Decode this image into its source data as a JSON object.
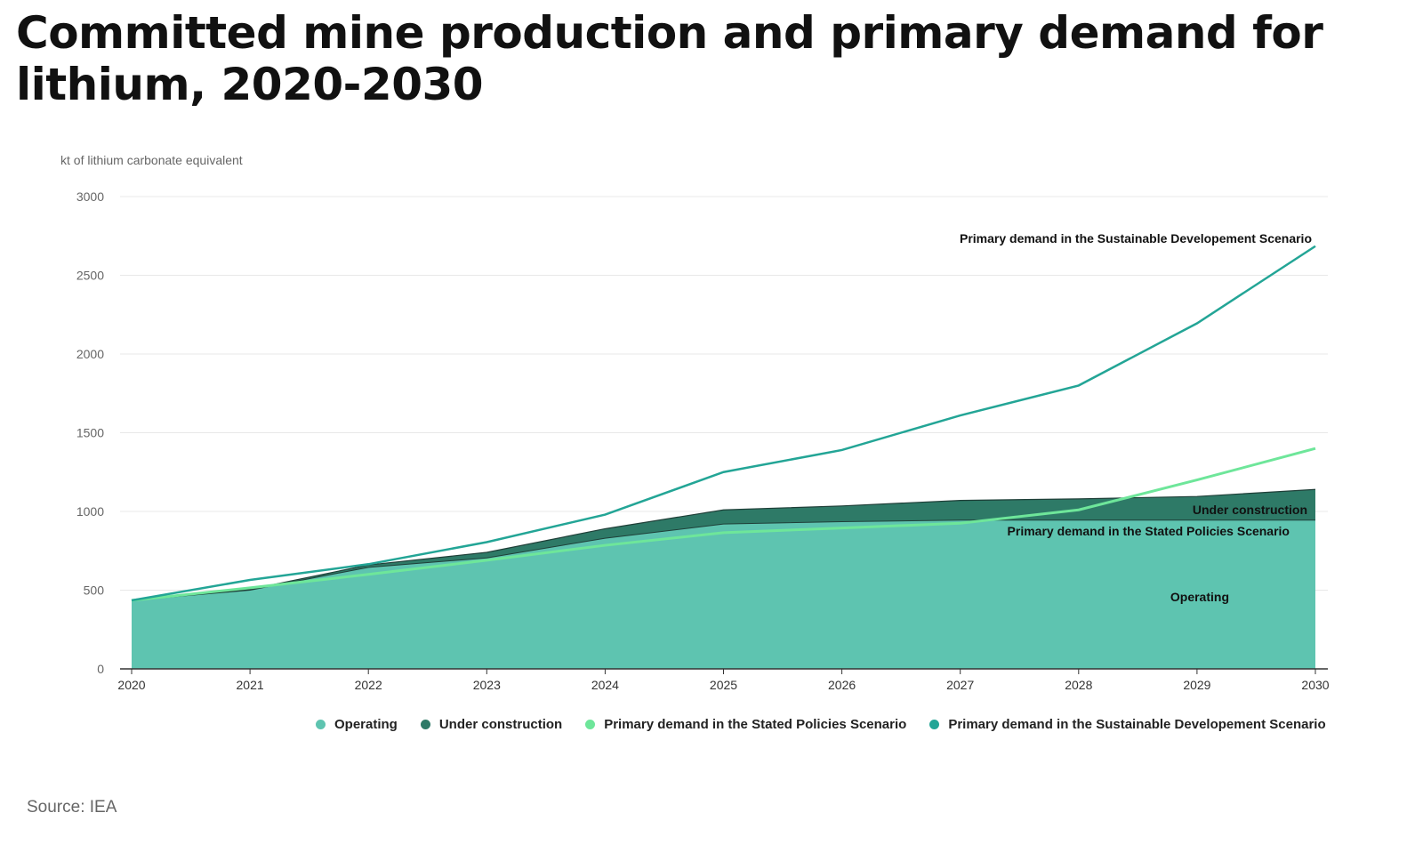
{
  "title": "Committed mine production and primary demand for lithium, 2020-2030",
  "source": "Source: IEA",
  "chart_data": {
    "type": "area",
    "ylabel": "kt of lithium carbonate equivalent",
    "ylim": [
      0,
      3000
    ],
    "yticks": [
      0,
      500,
      1000,
      1500,
      2000,
      2500,
      3000
    ],
    "x": [
      "2020",
      "2021",
      "2022",
      "2023",
      "2024",
      "2025",
      "2026",
      "2027",
      "2028",
      "2029",
      "2030"
    ],
    "grid": true,
    "legend_position": "bottom",
    "series": [
      {
        "name": "Operating",
        "kind": "stacked-area",
        "color": "#5ec4b0",
        "values": [
          435,
          500,
          645,
          705,
          830,
          920,
          935,
          945,
          945,
          945,
          945
        ]
      },
      {
        "name": "Under construction",
        "kind": "stacked-area",
        "color": "#2e7a67",
        "values": [
          0,
          5,
          15,
          35,
          60,
          90,
          100,
          125,
          135,
          150,
          195
        ]
      },
      {
        "name": "Primary demand in the Stated Policies Scenario",
        "kind": "line",
        "color": "#6ee69a",
        "values": [
          435,
          515,
          600,
          690,
          785,
          865,
          895,
          925,
          1010,
          1200,
          1400
        ]
      },
      {
        "name": "Primary demand in the Sustainable Developement Scenario",
        "kind": "line",
        "color": "#23a596",
        "values": [
          435,
          565,
          665,
          805,
          980,
          1250,
          1390,
          1610,
          1800,
          2195,
          2685
        ]
      }
    ],
    "annotations": [
      {
        "text": "Primary demand in the Sustainable Developement Scenario"
      },
      {
        "text": "Under construction"
      },
      {
        "text": "Primary demand in the Stated Policies Scenario"
      },
      {
        "text": "Operating"
      }
    ]
  }
}
